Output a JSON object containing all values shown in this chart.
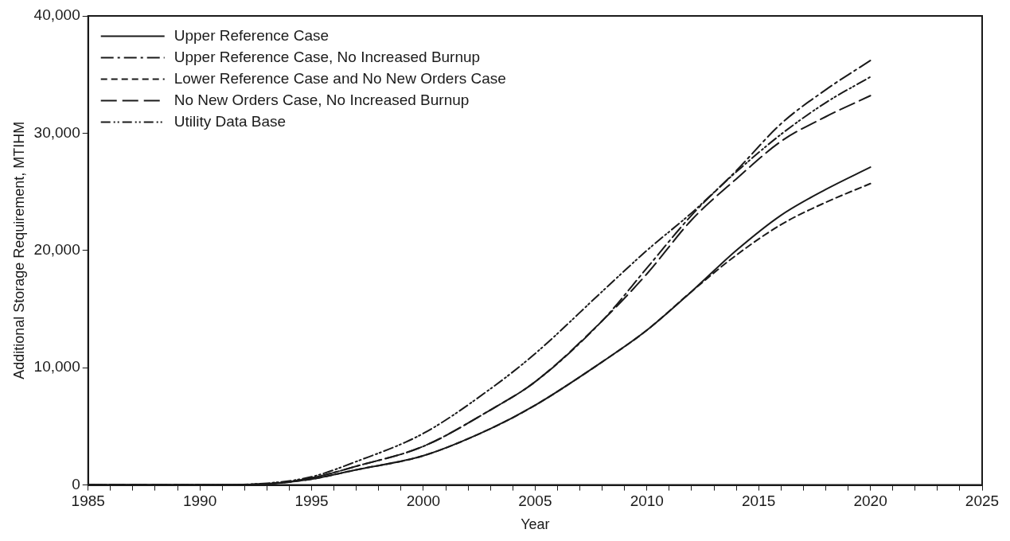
{
  "chart_data": {
    "type": "line",
    "xlabel": "Year",
    "ylabel": "Additional Storage Requirement, MTIHM",
    "x": [
      1985,
      1990,
      1993,
      1995,
      1997,
      2000,
      2003,
      2005,
      2008,
      2010,
      2012,
      2014,
      2016,
      2018,
      2020
    ],
    "series": [
      {
        "name": "Upper Reference Case",
        "color": "#1a1a1a",
        "line_style": "solid",
        "values": [
          0,
          0,
          100,
          500,
          1300,
          2500,
          4800,
          6800,
          10500,
          13200,
          16500,
          20000,
          23000,
          25200,
          27100
        ]
      },
      {
        "name": "Upper Reference Case, No Increased Burnup",
        "color": "#1a1a1a",
        "line_style": "dashdot",
        "values": [
          0,
          0,
          100,
          600,
          1600,
          3300,
          6400,
          8800,
          14000,
          18500,
          23000,
          26800,
          30800,
          33700,
          36200
        ]
      },
      {
        "name": "Lower Reference Case and No New Orders Case",
        "color": "#1a1a1a",
        "line_style": "dashed",
        "values": [
          0,
          0,
          100,
          500,
          1300,
          2500,
          4800,
          6800,
          10500,
          13200,
          16500,
          19600,
          22200,
          24100,
          25700
        ]
      },
      {
        "name": "No New Orders Case, No Increased Burnup",
        "color": "#1a1a1a",
        "line_style": "longdash",
        "values": [
          0,
          0,
          100,
          600,
          1600,
          3300,
          6400,
          8800,
          14000,
          18000,
          22600,
          26100,
          29300,
          31400,
          33200
        ]
      },
      {
        "name": "Utility Data Base",
        "color": "#1a1a1a",
        "line_style": "dashdotdot",
        "values": [
          0,
          0,
          150,
          700,
          2000,
          4400,
          8200,
          11200,
          16500,
          20000,
          23200,
          26700,
          29900,
          32600,
          34800
        ]
      }
    ],
    "xlim": [
      1985,
      2025
    ],
    "xticks": [
      1985,
      {
        "value": 1986,
        "label": null
      },
      {
        "value": 1987,
        "label": null
      },
      {
        "value": 1988,
        "label": null
      },
      {
        "value": 1989,
        "label": null
      },
      1990,
      {
        "value": 1991,
        "label": null
      },
      {
        "value": 1992,
        "label": null
      },
      {
        "value": 1993,
        "label": null
      },
      {
        "value": 1994,
        "label": null
      },
      1995,
      {
        "value": 1996,
        "label": null
      },
      {
        "value": 1997,
        "label": null
      },
      {
        "value": 1998,
        "label": null
      },
      {
        "value": 1999,
        "label": null
      },
      2000,
      {
        "value": 2001,
        "label": null
      },
      {
        "value": 2002,
        "label": null
      },
      {
        "value": 2003,
        "label": null
      },
      {
        "value": 2004,
        "label": null
      },
      2005,
      {
        "value": 2006,
        "label": null
      },
      {
        "value": 2007,
        "label": null
      },
      {
        "value": 2008,
        "label": null
      },
      {
        "value": 2009,
        "label": null
      },
      2010,
      {
        "value": 2011,
        "label": null
      },
      {
        "value": 2012,
        "label": null
      },
      {
        "value": 2013,
        "label": null
      },
      {
        "value": 2014,
        "label": null
      },
      2015,
      {
        "value": 2016,
        "label": null
      },
      {
        "value": 2017,
        "label": null
      },
      {
        "value": 2018,
        "label": null
      },
      {
        "value": 2019,
        "label": null
      },
      2020,
      {
        "value": 2021,
        "label": null
      },
      {
        "value": 2022,
        "label": null
      },
      {
        "value": 2023,
        "label": null
      },
      {
        "value": 2024,
        "label": null
      },
      2025
    ],
    "ylim": [
      0,
      40000
    ],
    "yticks": [
      0,
      {
        "value": 10000,
        "label": "10,000"
      },
      {
        "value": 20000,
        "label": "20,000"
      },
      {
        "value": 30000,
        "label": "30,000"
      },
      {
        "value": 40000,
        "label": "40,000"
      }
    ],
    "grid": false,
    "legend": "top left",
    "marker": "none"
  }
}
